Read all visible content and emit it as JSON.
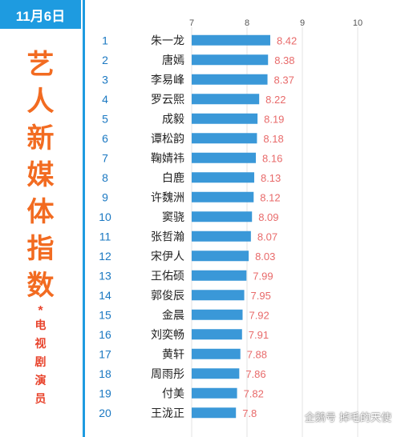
{
  "date": "11月6日",
  "title_chars": [
    "艺",
    "人",
    "新",
    "媒",
    "体",
    "指",
    "数"
  ],
  "title_star": "*",
  "subtitle_chars": [
    "电",
    "视",
    "剧",
    "演",
    "员"
  ],
  "watermark": "企鹅号 掉毛的天使",
  "chart_data": {
    "type": "bar",
    "orientation": "horizontal",
    "xlim": [
      7,
      10
    ],
    "ticks": [
      7,
      8,
      9,
      10
    ],
    "grid": true,
    "ranks": [
      1,
      2,
      3,
      4,
      5,
      6,
      7,
      8,
      9,
      10,
      11,
      12,
      13,
      14,
      15,
      16,
      17,
      18,
      19,
      20
    ],
    "categories": [
      "朱一龙",
      "唐嫣",
      "李易峰",
      "罗云熙",
      "成毅",
      "谭松韵",
      "鞠婧祎",
      "白鹿",
      "许魏洲",
      "窦骁",
      "张哲瀚",
      "宋伊人",
      "王佑硕",
      "郭俊辰",
      "金晨",
      "刘奕畅",
      "黄轩",
      "周雨彤",
      "付美",
      "王泷正"
    ],
    "values": [
      8.42,
      8.38,
      8.37,
      8.22,
      8.19,
      8.18,
      8.16,
      8.13,
      8.12,
      8.09,
      8.07,
      8.03,
      7.99,
      7.95,
      7.92,
      7.91,
      7.88,
      7.86,
      7.82,
      7.8
    ],
    "value_labels": [
      "8.42",
      "8.38",
      "8.37",
      "8.22",
      "8.19",
      "8.18",
      "8.16",
      "8.13",
      "8.12",
      "8.09",
      "8.07",
      "8.03",
      "7.99",
      "7.95",
      "7.92",
      "7.91",
      "7.88",
      "7.86",
      "7.82",
      "7.8"
    ]
  }
}
